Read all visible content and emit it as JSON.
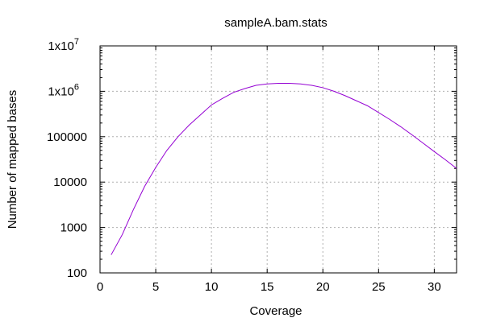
{
  "chart_data": {
    "type": "line",
    "title": "sampleA.bam.stats",
    "xlabel": "Coverage",
    "ylabel": "Number of mapped bases",
    "xlim": [
      0,
      32
    ],
    "ylim": [
      100,
      10000000
    ],
    "yscale": "log",
    "grid": true,
    "x_ticks": [
      0,
      5,
      10,
      15,
      20,
      25,
      30
    ],
    "y_ticks": [
      {
        "value": 100,
        "label": "100"
      },
      {
        "value": 1000,
        "label": "1000"
      },
      {
        "value": 10000,
        "label": "10000"
      },
      {
        "value": 100000,
        "label": "100000"
      },
      {
        "value": 1000000,
        "label": "1x10",
        "exp": "6"
      },
      {
        "value": 10000000,
        "label": "1x10",
        "exp": "7"
      }
    ],
    "series": [
      {
        "color": "#9400d3",
        "x": [
          1,
          2,
          3,
          4,
          5,
          6,
          7,
          8,
          9,
          10,
          11,
          12,
          13,
          14,
          15,
          16,
          17,
          18,
          19,
          20,
          21,
          22,
          23,
          24,
          25,
          26,
          27,
          28,
          29,
          30,
          31,
          32
        ],
        "y": [
          250,
          700,
          2500,
          8000,
          21000,
          50000,
          100000,
          180000,
          300000,
          500000,
          700000,
          950000,
          1150000,
          1350000,
          1450000,
          1500000,
          1500000,
          1450000,
          1350000,
          1200000,
          1000000,
          800000,
          620000,
          480000,
          340000,
          240000,
          165000,
          110000,
          72000,
          47000,
          31000,
          20000
        ]
      }
    ]
  }
}
